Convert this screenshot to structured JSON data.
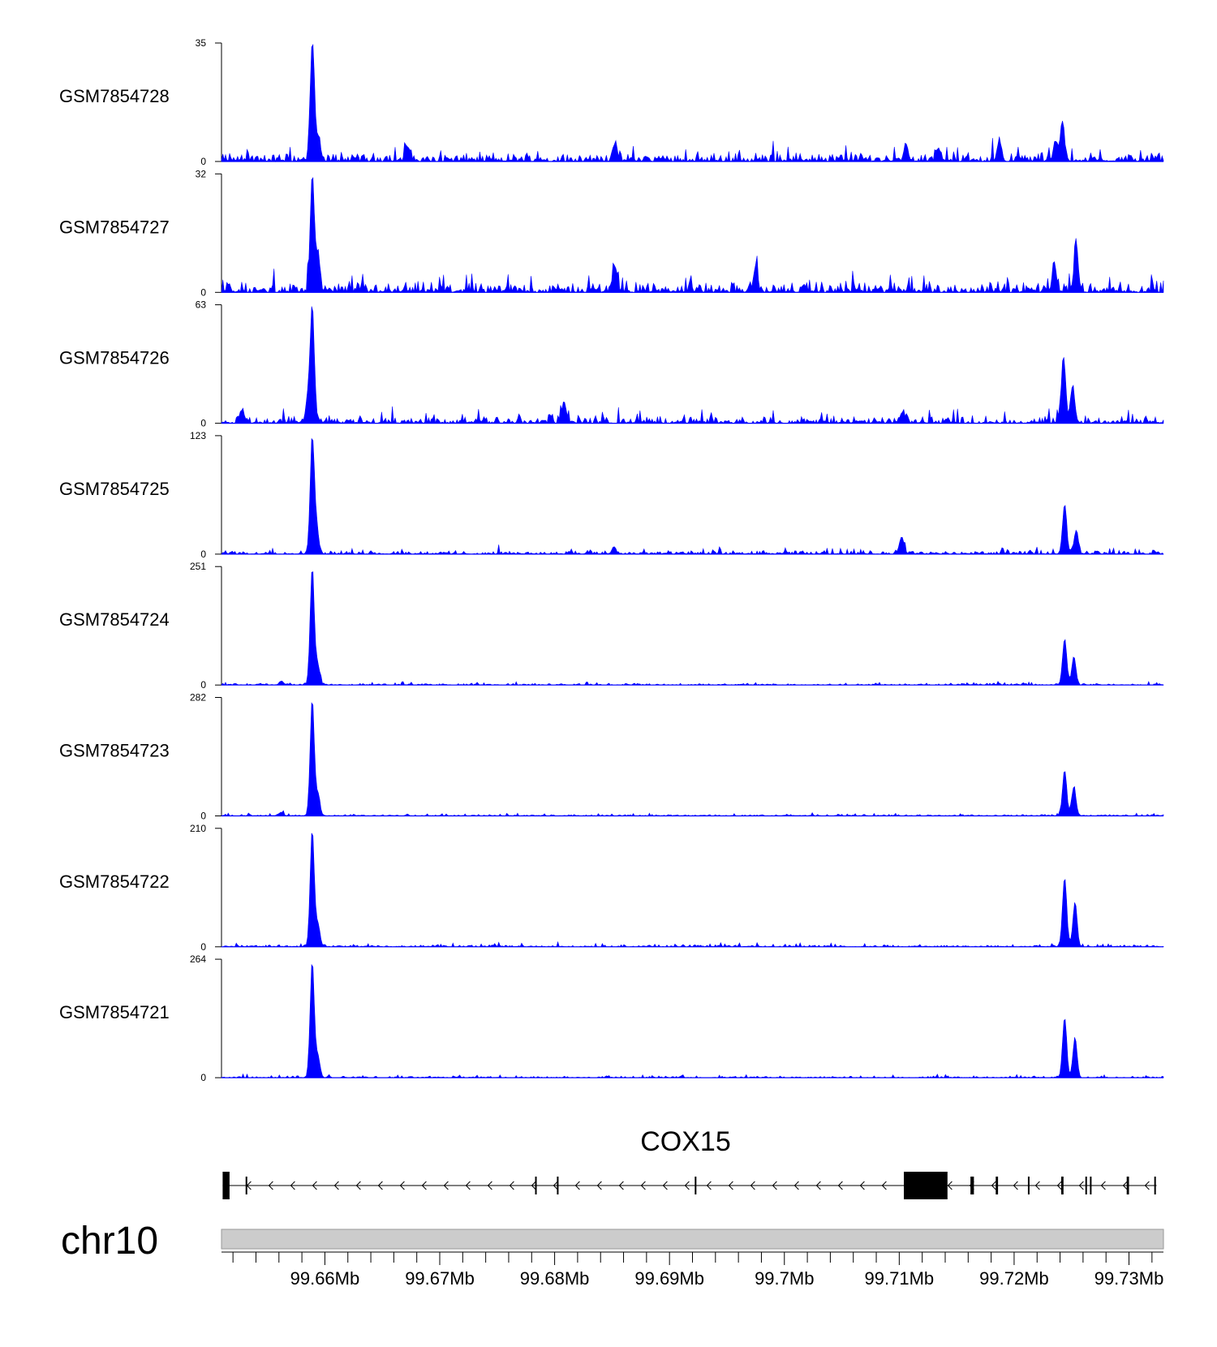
{
  "chart_data": {
    "type": "area",
    "x_range_mb": [
      99.651,
      99.733
    ],
    "x_unit": "Mb",
    "x_ticks": [
      {
        "pos": 99.66,
        "label": "99.66Mb"
      },
      {
        "pos": 99.67,
        "label": "99.67Mb"
      },
      {
        "pos": 99.68,
        "label": "99.68Mb"
      },
      {
        "pos": 99.69,
        "label": "99.69Mb"
      },
      {
        "pos": 99.7,
        "label": "99.7Mb"
      },
      {
        "pos": 99.71,
        "label": "99.71Mb"
      },
      {
        "pos": 99.72,
        "label": "99.72Mb"
      },
      {
        "pos": 99.73,
        "label": "99.73Mb"
      }
    ],
    "series_color": "#0000ff",
    "tracks": [
      {
        "name": "GSM7854728",
        "ymax": 35,
        "ymin": 0,
        "ymax_label": "35",
        "ymin_label": "0",
        "peaks": [
          [
            99.6589,
            35
          ],
          [
            99.6594,
            7
          ],
          [
            99.7242,
            12
          ],
          [
            99.7236,
            6
          ],
          [
            99.6852,
            5
          ],
          [
            99.6672,
            4
          ],
          [
            99.7106,
            5
          ],
          [
            99.7187,
            6
          ],
          [
            99.7134,
            4
          ]
        ],
        "baseline": 1.5
      },
      {
        "name": "GSM7854727",
        "ymax": 32,
        "ymin": 0,
        "ymax_label": "32",
        "ymin_label": "0",
        "peaks": [
          [
            99.6589,
            32
          ],
          [
            99.6594,
            10
          ],
          [
            99.6852,
            7
          ],
          [
            99.6975,
            7
          ],
          [
            99.7235,
            8
          ],
          [
            99.7254,
            13
          ]
        ],
        "baseline": 1.5
      },
      {
        "name": "GSM7854726",
        "ymax": 63,
        "ymin": 0,
        "ymax_label": "63",
        "ymin_label": "0",
        "peaks": [
          [
            99.6589,
            63
          ],
          [
            99.6585,
            12
          ],
          [
            99.6528,
            7
          ],
          [
            99.6808,
            11
          ],
          [
            99.7243,
            36
          ],
          [
            99.7251,
            20
          ],
          [
            99.7103,
            6
          ]
        ],
        "baseline": 2
      },
      {
        "name": "GSM7854725",
        "ymax": 123,
        "ymin": 0,
        "ymax_label": "123",
        "ymin_label": "0",
        "peaks": [
          [
            99.6589,
            123
          ],
          [
            99.6593,
            25
          ],
          [
            99.7102,
            18
          ],
          [
            99.7244,
            52
          ],
          [
            99.7254,
            24
          ],
          [
            99.6852,
            6
          ]
        ],
        "baseline": 2
      },
      {
        "name": "GSM7854724",
        "ymax": 251,
        "ymin": 0,
        "ymax_label": "251",
        "ymin_label": "0",
        "peaks": [
          [
            99.6589,
            251
          ],
          [
            99.6594,
            40
          ],
          [
            99.7244,
            100
          ],
          [
            99.7252,
            60
          ],
          [
            99.6562,
            8
          ]
        ],
        "baseline": 2
      },
      {
        "name": "GSM7854723",
        "ymax": 282,
        "ymin": 0,
        "ymax_label": "282",
        "ymin_label": "0",
        "peaks": [
          [
            99.6589,
            282
          ],
          [
            99.6594,
            50
          ],
          [
            99.7244,
            110
          ],
          [
            99.7252,
            70
          ],
          [
            99.6562,
            9
          ]
        ],
        "baseline": 2
      },
      {
        "name": "GSM7854722",
        "ymax": 210,
        "ymin": 0,
        "ymax_label": "210",
        "ymin_label": "0",
        "peaks": [
          [
            99.6589,
            210
          ],
          [
            99.6594,
            40
          ],
          [
            99.7244,
            125
          ],
          [
            99.7253,
            80
          ]
        ],
        "baseline": 2
      },
      {
        "name": "GSM7854721",
        "ymax": 264,
        "ymin": 0,
        "ymax_label": "264",
        "ymin_label": "0",
        "peaks": [
          [
            99.6589,
            264
          ],
          [
            99.6594,
            45
          ],
          [
            99.7244,
            135
          ],
          [
            99.7253,
            90
          ]
        ],
        "baseline": 2
      }
    ],
    "gene": {
      "name": "COX15",
      "strand": "-",
      "start_mb": 99.6511,
      "end_mb": 99.7324,
      "exons_mb": [
        [
          99.6511,
          99.6517
        ],
        [
          99.6531,
          99.6532
        ],
        [
          99.6783,
          99.6784
        ],
        [
          99.6802,
          99.6803
        ],
        [
          99.6922,
          99.6923
        ],
        [
          99.7104,
          99.7142
        ],
        [
          99.7127,
          99.7128
        ],
        [
          99.7162,
          99.7165
        ],
        [
          99.7184,
          99.7186
        ],
        [
          99.7212,
          99.7213
        ],
        [
          99.7241,
          99.7243
        ],
        [
          99.7262,
          99.7263
        ],
        [
          99.7266,
          99.7267
        ],
        [
          99.7298,
          99.73
        ],
        [
          99.7322,
          99.7323
        ]
      ]
    },
    "chromosome": "chr10"
  }
}
